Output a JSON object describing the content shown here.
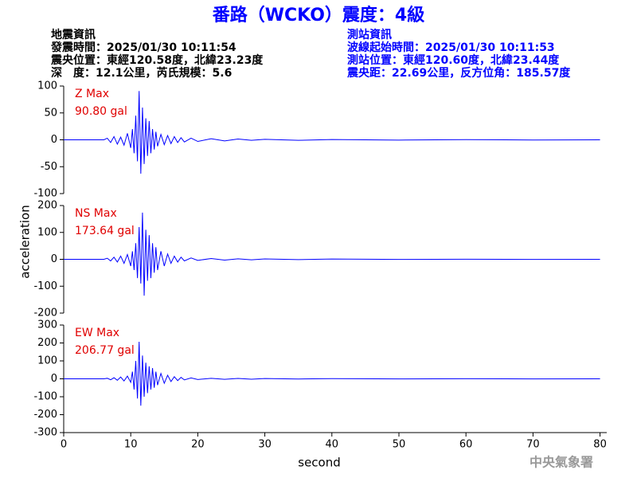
{
  "header": {
    "title": "番路（WCKO）震度：4級",
    "left": [
      "地震資訊",
      "發震時間：2025/01/30 10:11:54",
      "震央位置：東經120.58度，北緯23.23度",
      "深　度：12.1公里，芮氏規模：5.6"
    ],
    "right": [
      "測站資訊",
      "波線起始時間：2025/01/30 10:11:53",
      "測站位置：東經120.60度，北緯23.44度",
      "震央距：22.69公里，反方位角：185.57度"
    ],
    "footer": "中央氣象署"
  },
  "chart_data": [
    {
      "type": "line",
      "xlim": [
        0,
        81
      ],
      "ylim": [
        -100,
        100
      ],
      "yticks": [
        -100,
        -50,
        0,
        50,
        100
      ],
      "x": [
        0,
        6,
        6.5,
        7,
        7.5,
        8,
        8.5,
        9,
        9.5,
        10,
        10.25,
        10.5,
        10.75,
        11,
        11.25,
        11.5,
        11.75,
        12,
        12.25,
        12.5,
        12.75,
        13,
        13.25,
        13.5,
        13.75,
        14,
        14.5,
        15,
        15.5,
        16,
        16.5,
        17,
        17.5,
        18,
        19,
        20,
        22,
        24,
        26,
        28,
        30,
        35,
        40,
        50,
        60,
        70,
        80
      ],
      "series": [
        {
          "name": "Z Max",
          "annotation": "90.80 gal",
          "color": "#0000ff",
          "values": [
            0,
            0,
            3,
            -5,
            6,
            -8,
            5,
            -10,
            12,
            -15,
            20,
            -25,
            45,
            -40,
            90.8,
            -63,
            60,
            -45,
            40,
            -30,
            35,
            -25,
            20,
            -18,
            15,
            -12,
            10,
            -9,
            8,
            -7,
            6,
            -5,
            4,
            -4,
            3,
            -3,
            2,
            -2,
            1.5,
            -1,
            1,
            -1,
            0.5,
            -0.5,
            0.3,
            -0.3,
            0
          ]
        }
      ]
    },
    {
      "type": "line",
      "xlim": [
        0,
        81
      ],
      "ylim": [
        -200,
        200
      ],
      "yticks": [
        -200,
        -100,
        0,
        100,
        200
      ],
      "ylabel": "acceleration",
      "x": [
        0,
        6,
        6.5,
        7,
        7.5,
        8,
        8.5,
        9,
        9.5,
        10,
        10.25,
        10.5,
        10.75,
        11,
        11.25,
        11.5,
        11.75,
        12,
        12.25,
        12.5,
        12.75,
        13,
        13.25,
        13.5,
        13.75,
        14,
        14.5,
        15,
        15.5,
        16,
        16.5,
        17,
        17.5,
        18,
        19,
        20,
        22,
        24,
        26,
        28,
        30,
        35,
        40,
        50,
        60,
        70,
        80
      ],
      "series": [
        {
          "name": "NS Max",
          "annotation": "173.64 gal",
          "color": "#0000ff",
          "values": [
            0,
            0,
            4,
            -6,
            8,
            -10,
            12,
            -15,
            18,
            -25,
            30,
            -40,
            60,
            -70,
            120,
            -90,
            173.64,
            -135,
            110,
            -80,
            90,
            -70,
            60,
            -50,
            45,
            -40,
            30,
            -25,
            20,
            -15,
            12,
            -10,
            8,
            -6,
            5,
            -4,
            3,
            -3,
            2,
            -2,
            1.5,
            -1,
            1,
            -0.5,
            0.5,
            -0.3,
            0
          ]
        }
      ]
    },
    {
      "type": "line",
      "xlim": [
        0,
        81
      ],
      "ylim": [
        -300,
        300
      ],
      "yticks": [
        -300,
        -200,
        -100,
        0,
        100,
        200,
        300
      ],
      "xticks": [
        0,
        10,
        20,
        30,
        40,
        50,
        60,
        70,
        80
      ],
      "xlabel": "second",
      "x": [
        0,
        6,
        6.5,
        7,
        7.5,
        8,
        8.5,
        9,
        9.5,
        10,
        10.25,
        10.5,
        10.75,
        11,
        11.25,
        11.5,
        11.75,
        12,
        12.25,
        12.5,
        12.75,
        13,
        13.25,
        13.5,
        13.75,
        14,
        14.5,
        15,
        15.5,
        16,
        16.5,
        17,
        17.5,
        18,
        19,
        20,
        22,
        24,
        26,
        28,
        30,
        35,
        40,
        50,
        60,
        70,
        80
      ],
      "series": [
        {
          "name": "EW Max",
          "annotation": "206.77 gal",
          "color": "#0000ff",
          "values": [
            0,
            0,
            3,
            -5,
            6,
            -8,
            10,
            -12,
            15,
            -20,
            40,
            -60,
            100,
            -110,
            206.77,
            -150,
            130,
            -100,
            90,
            -80,
            70,
            -60,
            60,
            -50,
            40,
            -35,
            30,
            -25,
            20,
            -15,
            12,
            -10,
            8,
            -6,
            5,
            -4,
            3,
            -3,
            2,
            -2,
            1.5,
            -1,
            1,
            -0.5,
            0.5,
            -0.3,
            0
          ]
        }
      ]
    }
  ]
}
